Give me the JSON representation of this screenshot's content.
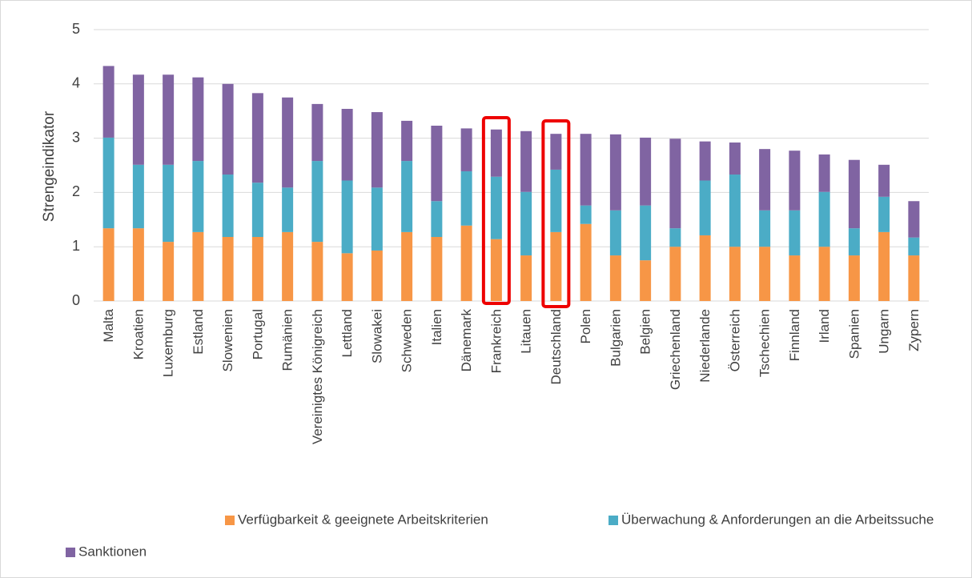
{
  "chart_data": {
    "type": "stacked_bar",
    "y_label": "Strengeindikator",
    "categories": [
      "Malta",
      "Kroatien",
      "Luxemburg",
      "Estland",
      "Slowenien",
      "Portugal",
      "Rumänien",
      "Vereinigtes Königreich",
      "Lettland",
      "Slowakei",
      "Schweden",
      "Italien",
      "Dänemark",
      "Frankreich",
      "Litauen",
      "Deutschland",
      "Polen",
      "Bulgarien",
      "Belgien",
      "Griechenland",
      "Niederlande",
      "Österreich",
      "Tschechien",
      "Finnland",
      "Irland",
      "Spanien",
      "Ungarn",
      "Zypern"
    ],
    "series": [
      {
        "name": "Verfügbarkeit & geeignete Arbeitskriterien",
        "color": "#f79646",
        "values": [
          1.34,
          1.34,
          1.09,
          1.27,
          1.18,
          1.18,
          1.27,
          1.09,
          0.88,
          0.93,
          1.27,
          1.18,
          1.39,
          1.14,
          0.84,
          1.27,
          1.42,
          0.84,
          0.75,
          1.0,
          1.21,
          1.0,
          1.0,
          0.84,
          1.0,
          0.84,
          1.27,
          0.84
        ]
      },
      {
        "name": "Überwachung & Anforderungen an die Arbeitssuche",
        "color": "#4bacc6",
        "values": [
          1.67,
          1.17,
          1.42,
          1.31,
          1.15,
          1.0,
          0.82,
          1.49,
          1.34,
          1.16,
          1.31,
          0.66,
          1.0,
          1.15,
          1.17,
          1.15,
          0.34,
          0.83,
          1.01,
          0.34,
          1.01,
          1.33,
          0.67,
          0.83,
          1.01,
          0.5,
          0.65,
          0.33
        ]
      },
      {
        "name": "Sanktionen",
        "color": "#8064a2",
        "values": [
          1.32,
          1.66,
          1.66,
          1.54,
          1.67,
          1.65,
          1.66,
          1.05,
          1.32,
          1.39,
          0.74,
          1.39,
          0.79,
          0.87,
          1.12,
          0.66,
          1.32,
          1.4,
          1.25,
          1.65,
          0.72,
          0.59,
          1.13,
          1.1,
          0.69,
          1.26,
          0.59,
          0.67
        ]
      }
    ],
    "ylim": [
      0,
      5
    ],
    "yticks": [
      0,
      1,
      2,
      3,
      4,
      5
    ],
    "grid": true
  }
}
